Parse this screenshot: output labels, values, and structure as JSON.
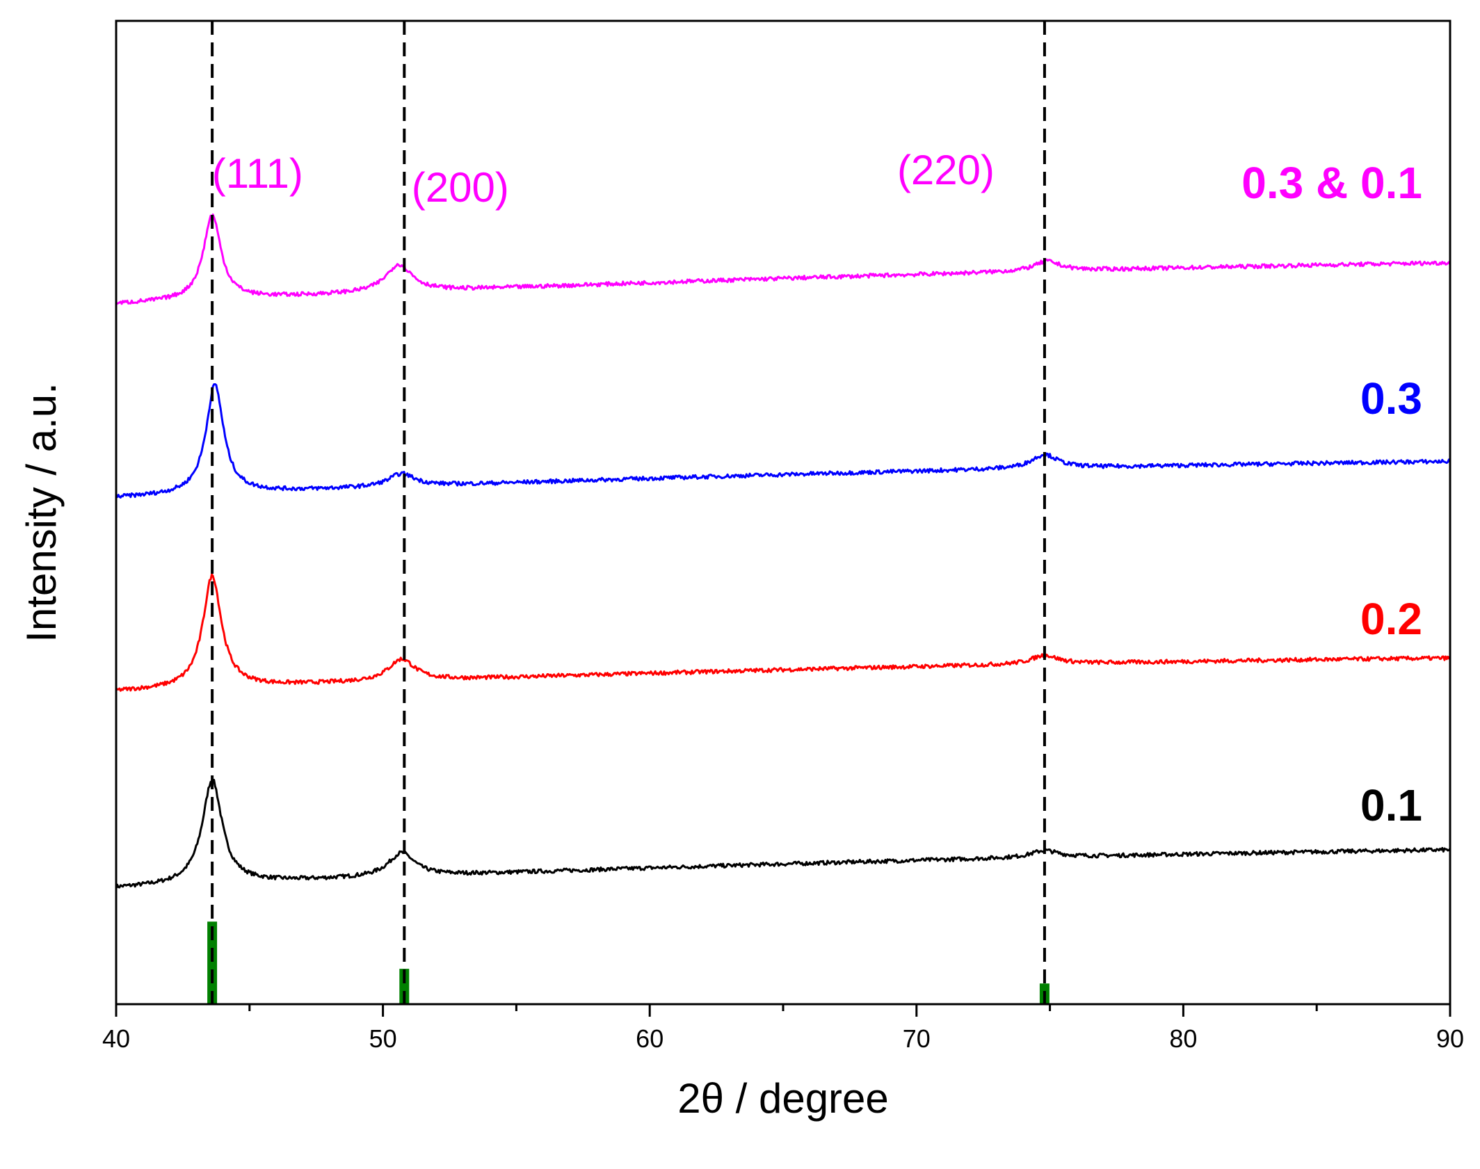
{
  "chart_data": {
    "type": "line",
    "title": "",
    "xlabel": "2θ / degree",
    "ylabel": "Intensity / a.u.",
    "xlim": [
      40,
      90
    ],
    "xticks": [
      40,
      50,
      60,
      70,
      80,
      90
    ],
    "y_axis_ticks": "none",
    "grid": false,
    "series": [
      {
        "name": "0.1",
        "label": "0.1",
        "color": "#000000",
        "baseline_start": 0.118,
        "baseline_end": 0.157,
        "curvature": 0.02,
        "peaks": [
          {
            "x": 43.6,
            "height": 0.106,
            "width": 0.45
          },
          {
            "x": 50.7,
            "height": 0.024,
            "width": 0.6
          },
          {
            "x": 74.8,
            "height": 0.007,
            "width": 0.6
          }
        ]
      },
      {
        "name": "0.2",
        "label": "0.2",
        "color": "#ff0000",
        "baseline_start": 0.318,
        "baseline_end": 0.352,
        "curvature": 0.02,
        "peaks": [
          {
            "x": 43.6,
            "height": 0.114,
            "width": 0.42
          },
          {
            "x": 50.7,
            "height": 0.022,
            "width": 0.6
          },
          {
            "x": 74.8,
            "height": 0.009,
            "width": 0.6
          }
        ]
      },
      {
        "name": "0.3",
        "label": "0.3",
        "color": "#0000ff",
        "baseline_start": 0.515,
        "baseline_end": 0.552,
        "curvature": 0.02,
        "peaks": [
          {
            "x": 43.7,
            "height": 0.111,
            "width": 0.4
          },
          {
            "x": 50.7,
            "height": 0.013,
            "width": 0.6
          },
          {
            "x": 74.8,
            "height": 0.014,
            "width": 0.6
          }
        ]
      },
      {
        "name": "0.3 & 0.1",
        "label": "0.3 & 0.1",
        "color": "#ff00ff",
        "baseline_start": 0.712,
        "baseline_end": 0.754,
        "curvature": 0.02,
        "peaks": [
          {
            "x": 43.6,
            "height": 0.086,
            "width": 0.4
          },
          {
            "x": 50.6,
            "height": 0.028,
            "width": 0.6
          },
          {
            "x": 74.9,
            "height": 0.01,
            "width": 0.6
          }
        ]
      }
    ],
    "reference_lines": [
      {
        "x": 43.6,
        "label": "(111)",
        "label_x": 45.3
      },
      {
        "x": 50.8,
        "label": "(200)",
        "label_x": 52.9
      },
      {
        "x": 74.8,
        "label": "(220)",
        "label_x": 71.1
      }
    ],
    "reference_line_label_color": "#ff00ff",
    "reference_bars": {
      "color": "#008000",
      "bars": [
        {
          "x": 43.6,
          "height": 0.084
        },
        {
          "x": 50.8,
          "height": 0.036
        },
        {
          "x": 74.8,
          "height": 0.021
        }
      ]
    }
  }
}
